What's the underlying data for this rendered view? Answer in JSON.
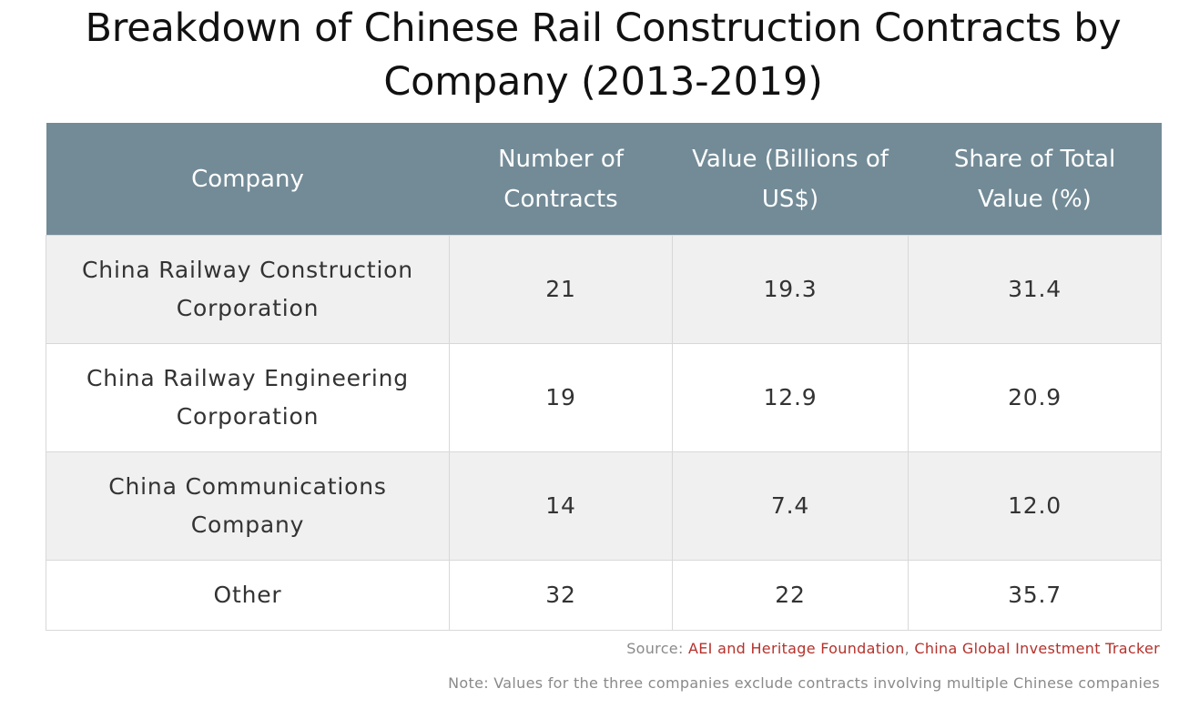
{
  "title": "Breakdown of Chinese Rail Construction Contracts by Company (2013-2019)",
  "colors": {
    "header_bg": "#728b97",
    "header_text": "#ffffff",
    "row_alt_bg": "#f0f0f0",
    "link": "#b5312b",
    "footnote": "#8a8a8a"
  },
  "chart_data": {
    "type": "table",
    "title": "Breakdown of Chinese Rail Construction Contracts by Company (2013-2019)",
    "columns": [
      "Company",
      "Number of Contracts",
      "Value (Billions of US$)",
      "Share of Total Value (%)"
    ],
    "rows": [
      [
        "China Railway Construction Corporation",
        "21",
        "19.3",
        "31.4"
      ],
      [
        "China Railway Engineering Corporation",
        "19",
        "12.9",
        "20.9"
      ],
      [
        "China Communications Company",
        "14",
        "7.4",
        "12.0"
      ],
      [
        "Other",
        "32",
        "22",
        "35.7"
      ]
    ]
  },
  "footer": {
    "source_prefix": "Source:",
    "source_link_1": "AEI and Heritage Foundation",
    "source_separator": ",",
    "source_link_2": "China Global Investment Tracker",
    "note": "Note: Values for the three companies exclude contracts involving multiple Chinese companies"
  }
}
